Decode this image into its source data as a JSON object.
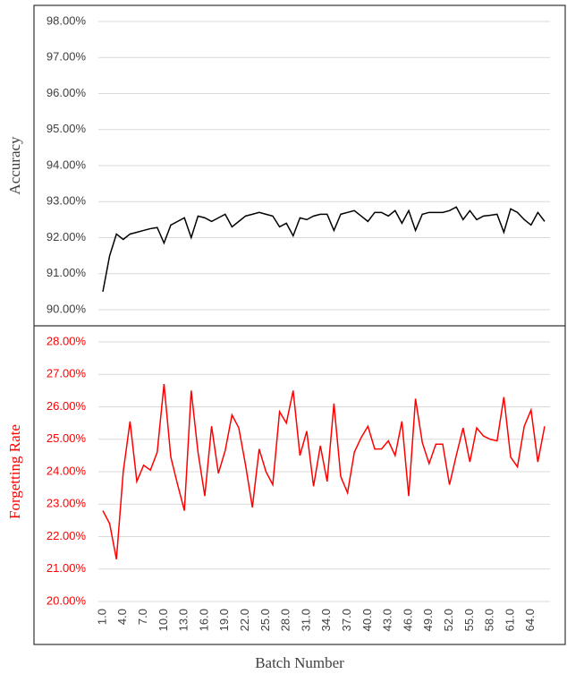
{
  "chart_data": [
    {
      "type": "line",
      "ylabel": "Accuracy",
      "color": "#000000",
      "ylim": [
        90,
        98
      ],
      "yticks": [
        {
          "value": 90,
          "label": "90.00%"
        },
        {
          "value": 91,
          "label": "91.00%"
        },
        {
          "value": 92,
          "label": "92.00%"
        },
        {
          "value": 93,
          "label": "93.00%"
        },
        {
          "value": 94,
          "label": "94.00%"
        },
        {
          "value": 95,
          "label": "95.00%"
        },
        {
          "value": 96,
          "label": "96.00%"
        },
        {
          "value": 97,
          "label": "97.00%"
        },
        {
          "value": 98,
          "label": "98.00%"
        }
      ],
      "grid": true,
      "values": [
        90.5,
        91.5,
        92.1,
        91.95,
        92.1,
        92.15,
        92.2,
        92.25,
        92.28,
        91.85,
        92.35,
        92.45,
        92.55,
        92.0,
        92.6,
        92.55,
        92.45,
        92.55,
        92.65,
        92.3,
        92.45,
        92.6,
        92.65,
        92.7,
        92.65,
        92.6,
        92.3,
        92.4,
        92.05,
        92.55,
        92.5,
        92.6,
        92.65,
        92.65,
        92.2,
        92.65,
        92.7,
        92.75,
        92.6,
        92.45,
        92.7,
        92.7,
        92.6,
        92.75,
        92.4,
        92.75,
        92.2,
        92.65,
        92.7,
        92.7,
        92.7,
        92.75,
        92.85,
        92.5,
        92.75,
        92.5,
        92.6,
        92.62,
        92.65,
        92.15,
        92.8,
        92.7,
        92.5,
        92.35,
        92.7,
        92.45
      ]
    },
    {
      "type": "line",
      "ylabel": "Forgetting Rate",
      "xlabel": "Batch Number",
      "color": "#ff0000",
      "ylim": [
        20,
        28
      ],
      "yticks": [
        {
          "value": 20,
          "label": "20.00%"
        },
        {
          "value": 21,
          "label": "21.00%"
        },
        {
          "value": 22,
          "label": "22.00%"
        },
        {
          "value": 23,
          "label": "23.00%"
        },
        {
          "value": 24,
          "label": "24.00%"
        },
        {
          "value": 25,
          "label": "25.00%"
        },
        {
          "value": 26,
          "label": "26.00%"
        },
        {
          "value": 27,
          "label": "27.00%"
        },
        {
          "value": 28,
          "label": "28.00%"
        }
      ],
      "grid": true,
      "categories": [
        "1.0",
        null,
        null,
        "4.0",
        null,
        null,
        "7.0",
        null,
        null,
        "10.0",
        null,
        null,
        "13.0",
        null,
        null,
        "16.0",
        null,
        null,
        "19.0",
        null,
        null,
        "22.0",
        null,
        null,
        "25.0",
        null,
        null,
        "28.0",
        null,
        null,
        "31.0",
        null,
        null,
        "34.0",
        null,
        null,
        "37.0",
        null,
        null,
        "40.0",
        null,
        null,
        "43.0",
        null,
        null,
        "46.0",
        null,
        null,
        "49.0",
        null,
        null,
        "52.0",
        null,
        null,
        "55.0",
        null,
        null,
        "58.0",
        null,
        null,
        "61.0",
        null,
        null,
        "64.0",
        null,
        null
      ],
      "values": [
        22.8,
        22.4,
        21.3,
        24.0,
        25.55,
        23.7,
        24.2,
        24.05,
        24.6,
        26.7,
        24.45,
        23.6,
        22.8,
        26.5,
        24.6,
        23.25,
        25.4,
        23.95,
        24.65,
        25.75,
        25.35,
        24.2,
        22.9,
        24.7,
        24.0,
        23.6,
        25.85,
        25.5,
        26.5,
        24.5,
        25.25,
        23.55,
        24.8,
        23.7,
        26.1,
        23.85,
        23.35,
        24.6,
        25.05,
        25.4,
        24.7,
        24.7,
        24.95,
        24.5,
        25.55,
        23.25,
        26.25,
        24.9,
        24.25,
        24.85,
        24.85,
        23.6,
        24.5,
        25.35,
        24.3,
        25.35,
        25.1,
        25.0,
        24.95,
        26.3,
        24.45,
        24.15,
        25.4,
        25.9,
        24.3,
        25.4
      ]
    }
  ]
}
